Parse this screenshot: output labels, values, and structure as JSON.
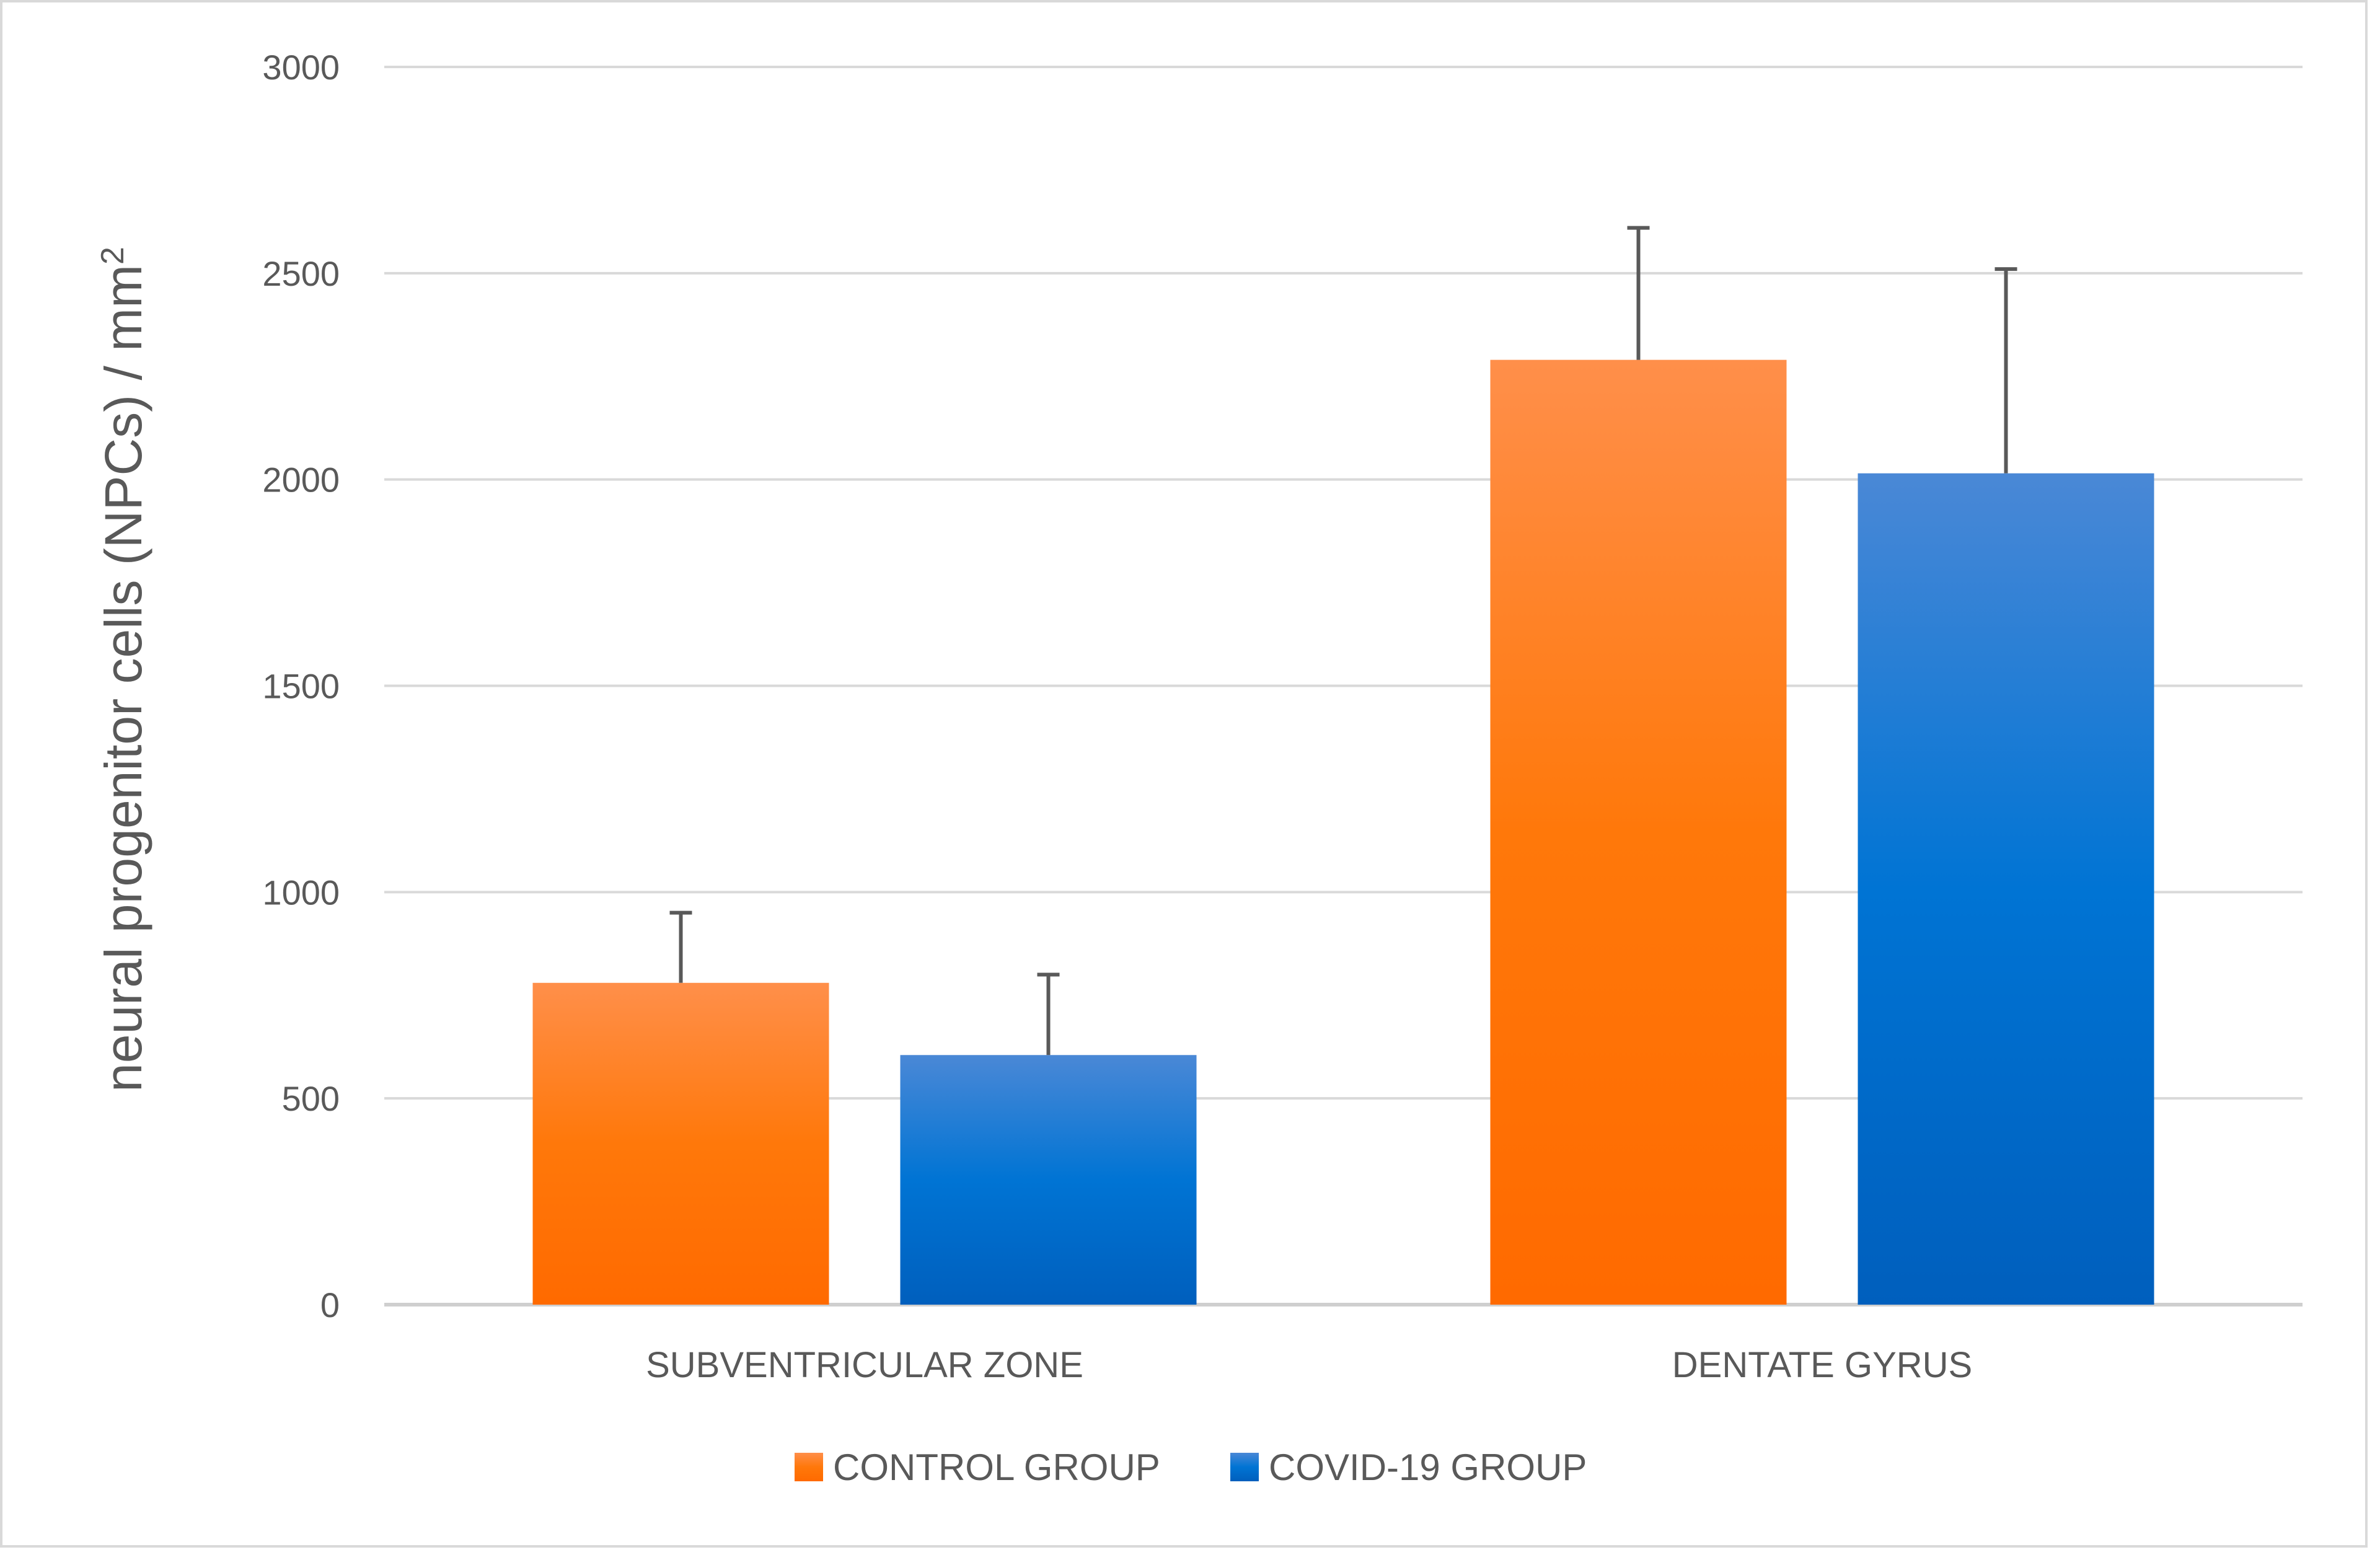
{
  "chart_data": {
    "type": "bar",
    "categories": [
      "SUBVENTRICULAR ZONE",
      "DENTATE GYRUS"
    ],
    "series": [
      {
        "name": "CONTROL GROUP",
        "values": [
          780,
          2290
        ],
        "error": [
          170,
          320
        ],
        "color": "#ff7300"
      },
      {
        "name": "COVID-19 GROUP",
        "values": [
          605,
          2015
        ],
        "error": [
          195,
          495
        ],
        "color": "#0b6fd1"
      }
    ],
    "ylabel": "neural progenitor cells (NPCs) / mm",
    "ylabel_superscript": "2",
    "ylim": [
      0,
      3000
    ],
    "yticks": [
      0,
      500,
      1000,
      1500,
      2000,
      2500,
      3000
    ],
    "grid": true,
    "legend_position": "bottom"
  }
}
